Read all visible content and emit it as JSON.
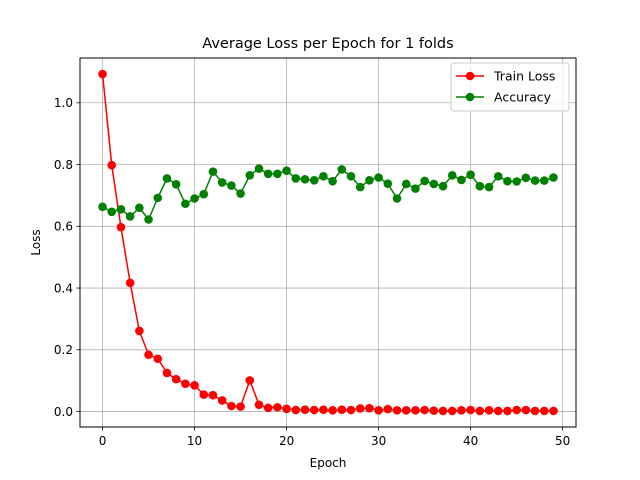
{
  "chart_data": {
    "type": "line",
    "title": "Average Loss per Epoch for 1 folds",
    "xlabel": "Epoch",
    "ylabel": "Loss",
    "xlim": [
      -2.45,
      51.45
    ],
    "ylim": [
      -0.05,
      1.145
    ],
    "xticks": [
      0,
      10,
      20,
      30,
      40,
      50
    ],
    "yticks": [
      0.0,
      0.2,
      0.4,
      0.6,
      0.8,
      1.0
    ],
    "xtick_labels": [
      "0",
      "10",
      "20",
      "30",
      "40",
      "50"
    ],
    "ytick_labels": [
      "0.0",
      "0.2",
      "0.4",
      "0.6",
      "0.8",
      "1.0"
    ],
    "grid": true,
    "legend_position": "top-right",
    "x": [
      0,
      1,
      2,
      3,
      4,
      5,
      6,
      7,
      8,
      9,
      10,
      11,
      12,
      13,
      14,
      15,
      16,
      17,
      18,
      19,
      20,
      21,
      22,
      23,
      24,
      25,
      26,
      27,
      28,
      29,
      30,
      31,
      32,
      33,
      34,
      35,
      36,
      37,
      38,
      39,
      40,
      41,
      42,
      43,
      44,
      45,
      46,
      47,
      48,
      49
    ],
    "series": [
      {
        "name": "Train Loss",
        "color": "#ff0000",
        "values": [
          1.093,
          0.798,
          0.597,
          0.417,
          0.261,
          0.184,
          0.171,
          0.125,
          0.105,
          0.09,
          0.085,
          0.055,
          0.053,
          0.036,
          0.018,
          0.016,
          0.101,
          0.022,
          0.012,
          0.014,
          0.009,
          0.005,
          0.006,
          0.005,
          0.006,
          0.004,
          0.006,
          0.005,
          0.01,
          0.011,
          0.004,
          0.008,
          0.004,
          0.004,
          0.004,
          0.005,
          0.003,
          0.002,
          0.002,
          0.004,
          0.005,
          0.002,
          0.004,
          0.002,
          0.002,
          0.005,
          0.005,
          0.002,
          0.002,
          0.002
        ]
      },
      {
        "name": "Accuracy",
        "color": "#008000",
        "values": [
          0.663,
          0.647,
          0.655,
          0.632,
          0.66,
          0.622,
          0.692,
          0.755,
          0.736,
          0.673,
          0.69,
          0.704,
          0.777,
          0.742,
          0.732,
          0.706,
          0.765,
          0.787,
          0.77,
          0.77,
          0.78,
          0.755,
          0.752,
          0.749,
          0.762,
          0.746,
          0.784,
          0.762,
          0.727,
          0.749,
          0.758,
          0.738,
          0.69,
          0.737,
          0.722,
          0.747,
          0.737,
          0.73,
          0.765,
          0.75,
          0.767,
          0.73,
          0.727,
          0.762,
          0.746,
          0.745,
          0.757,
          0.748,
          0.748,
          0.758
        ]
      }
    ]
  }
}
